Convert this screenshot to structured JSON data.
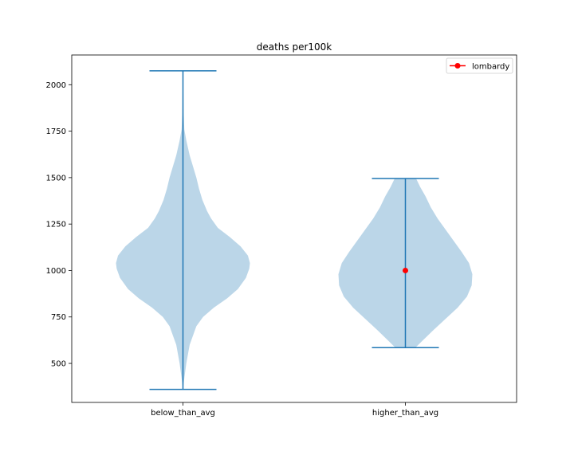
{
  "chart_data": {
    "type": "violin",
    "title": "deaths per100k",
    "xlabel": "",
    "ylabel": "",
    "categories": [
      "below_than_avg",
      "higher_than_avg"
    ],
    "y_ticks": [
      500,
      750,
      1000,
      1250,
      1500,
      1750,
      2000
    ],
    "ylim": [
      290,
      2160
    ],
    "grid": false,
    "violins": [
      {
        "category": "below_than_avg",
        "min": 360,
        "max": 2075,
        "density_profile": [
          [
            360,
            0.0
          ],
          [
            420,
            0.02
          ],
          [
            500,
            0.05
          ],
          [
            600,
            0.1
          ],
          [
            700,
            0.2
          ],
          [
            750,
            0.3
          ],
          [
            800,
            0.46
          ],
          [
            850,
            0.66
          ],
          [
            900,
            0.82
          ],
          [
            960,
            0.94
          ],
          [
            1010,
            0.99
          ],
          [
            1040,
            1.0
          ],
          [
            1080,
            0.97
          ],
          [
            1130,
            0.86
          ],
          [
            1180,
            0.7
          ],
          [
            1230,
            0.52
          ],
          [
            1280,
            0.42
          ],
          [
            1320,
            0.36
          ],
          [
            1380,
            0.29
          ],
          [
            1440,
            0.24
          ],
          [
            1500,
            0.2
          ],
          [
            1560,
            0.15
          ],
          [
            1620,
            0.1
          ],
          [
            1700,
            0.05
          ],
          [
            1760,
            0.02
          ],
          [
            1850,
            0.01
          ],
          [
            2000,
            0.005
          ],
          [
            2075,
            0.0
          ]
        ]
      },
      {
        "category": "higher_than_avg",
        "min": 585,
        "max": 1495,
        "density_profile": [
          [
            585,
            0.15
          ],
          [
            620,
            0.25
          ],
          [
            680,
            0.42
          ],
          [
            740,
            0.6
          ],
          [
            800,
            0.78
          ],
          [
            860,
            0.92
          ],
          [
            920,
            0.99
          ],
          [
            980,
            1.0
          ],
          [
            1040,
            0.95
          ],
          [
            1100,
            0.84
          ],
          [
            1160,
            0.72
          ],
          [
            1220,
            0.6
          ],
          [
            1280,
            0.48
          ],
          [
            1340,
            0.38
          ],
          [
            1400,
            0.3
          ],
          [
            1450,
            0.22
          ],
          [
            1495,
            0.16
          ]
        ]
      }
    ],
    "points": [
      {
        "category": "higher_than_avg",
        "value": 1000,
        "color": "#ff0000"
      }
    ],
    "legend": {
      "placement": "top-right",
      "entries": [
        {
          "label": "lombardy",
          "color": "#ff0000",
          "marker": "circle-line"
        }
      ]
    },
    "colors": {
      "violin_fill": "#1f77b4",
      "violin_fill_opacity": 0.3,
      "violin_lines": "#1f77b4",
      "marker": "#ff0000"
    }
  }
}
